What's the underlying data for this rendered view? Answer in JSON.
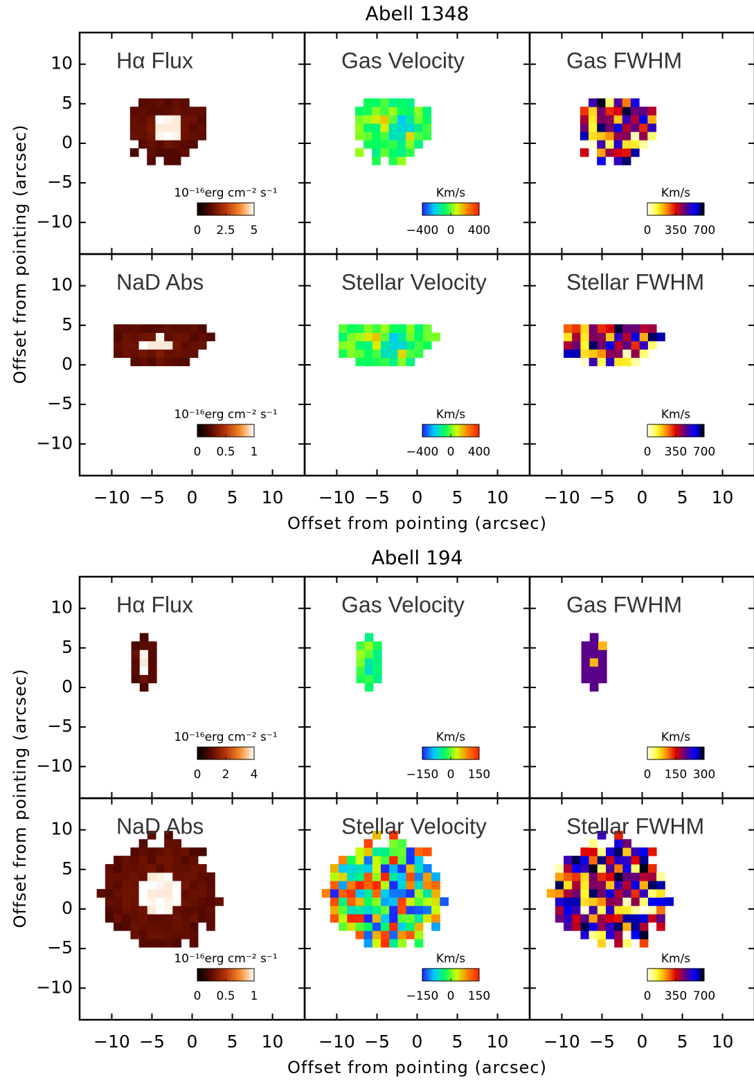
{
  "chart_data": [
    {
      "type": "image-grid",
      "title": "Abell 1348",
      "xlabel": "Offset from pointing (arcsec)",
      "ylabel": "Offset from pointing (arcsec)",
      "xlim": [
        -14,
        14
      ],
      "ylim": [
        -14,
        14
      ],
      "xticks": [
        {
          "value": -10,
          "label": "−10"
        },
        {
          "value": -5,
          "label": "−5"
        },
        0,
        5,
        10
      ],
      "yticks": [
        {
          "value": -10,
          "label": "−10"
        },
        {
          "value": -5,
          "label": "−5"
        },
        0,
        5,
        10
      ],
      "panels": [
        {
          "label": "Hα Flux",
          "colorbar": {
            "label": "10⁻¹⁶erg cm⁻² s⁻¹",
            "lim": [
              0,
              5
            ],
            "ticks": [
              0,
              2.5,
              5
            ],
            "colormap": [
              "#000000",
              "#5a0a00",
              "#b8340a",
              "#f58a2a",
              "#ffffff"
            ]
          }
        },
        {
          "label": "Gas Velocity",
          "colorbar": {
            "label": "Km/s",
            "lim": [
              -400,
              400
            ],
            "ticks": [
              {
                "value": -400,
                "label": "−400"
              },
              0,
              400
            ],
            "colormap": [
              "#2020ff",
              "#00c8ff",
              "#00ff60",
              "#d0ff00",
              "#ff8000",
              "#ff2000"
            ]
          }
        },
        {
          "label": "Gas FWHM",
          "colorbar": {
            "label": "Km/s",
            "lim": [
              0,
              700
            ],
            "ticks": [
              0,
              350,
              700
            ],
            "colormap": [
              "#ffffff",
              "#ffff30",
              "#ff9000",
              "#e00000",
              "#600080",
              "#0000ff",
              "#000000"
            ]
          }
        },
        {
          "label": "NaD Abs",
          "colorbar": {
            "label": "10⁻¹⁶erg cm⁻² s⁻¹",
            "lim": [
              0,
              1
            ],
            "ticks": [
              0,
              0.5,
              1
            ],
            "colormap": [
              "#000000",
              "#5a0a00",
              "#b8340a",
              "#f58a2a",
              "#ffffff"
            ]
          }
        },
        {
          "label": "Stellar Velocity",
          "colorbar": {
            "label": "Km/s",
            "lim": [
              -400,
              400
            ],
            "ticks": [
              {
                "value": -400,
                "label": "−400"
              },
              0,
              400
            ],
            "colormap": [
              "#2020ff",
              "#00c8ff",
              "#00ff60",
              "#d0ff00",
              "#ff8000",
              "#ff2000"
            ]
          }
        },
        {
          "label": "Stellar FWHM",
          "colorbar": {
            "label": "Km/s",
            "lim": [
              0,
              700
            ],
            "ticks": [
              0,
              350,
              700
            ],
            "colormap": [
              "#ffffff",
              "#ffff30",
              "#ff9000",
              "#e00000",
              "#600080",
              "#0000ff",
              "#000000"
            ]
          }
        }
      ]
    },
    {
      "type": "image-grid",
      "title": "Abell 194",
      "xlabel": "Offset from pointing (arcsec)",
      "ylabel": "Offset from pointing (arcsec)",
      "xlim": [
        -14,
        14
      ],
      "ylim": [
        -14,
        14
      ],
      "xticks": [
        {
          "value": -10,
          "label": "−10"
        },
        {
          "value": -5,
          "label": "−5"
        },
        0,
        5,
        10
      ],
      "yticks": [
        {
          "value": -10,
          "label": "−10"
        },
        {
          "value": -5,
          "label": "−5"
        },
        0,
        5,
        10
      ],
      "panels": [
        {
          "label": "Hα Flux",
          "colorbar": {
            "label": "10⁻¹⁶erg cm⁻² s⁻¹",
            "lim": [
              0,
              4
            ],
            "ticks": [
              0,
              2,
              4
            ],
            "colormap": [
              "#000000",
              "#5a0a00",
              "#b8340a",
              "#f58a2a",
              "#ffffff"
            ]
          }
        },
        {
          "label": "Gas Velocity",
          "colorbar": {
            "label": "Km/s",
            "lim": [
              -150,
              150
            ],
            "ticks": [
              {
                "value": -150,
                "label": "−150"
              },
              0,
              150
            ],
            "colormap": [
              "#2020ff",
              "#00c8ff",
              "#00ff60",
              "#d0ff00",
              "#ff8000",
              "#ff2000"
            ]
          }
        },
        {
          "label": "Gas FWHM",
          "colorbar": {
            "label": "Km/s",
            "lim": [
              0,
              300
            ],
            "ticks": [
              0,
              150,
              300
            ],
            "colormap": [
              "#ffffff",
              "#ffff30",
              "#ff9000",
              "#e00000",
              "#600080",
              "#0000ff",
              "#000000"
            ]
          }
        },
        {
          "label": "NaD Abs",
          "colorbar": {
            "label": "10⁻¹⁶erg cm⁻² s⁻¹",
            "lim": [
              0,
              1
            ],
            "ticks": [
              0,
              0.5,
              1
            ],
            "colormap": [
              "#000000",
              "#5a0a00",
              "#b8340a",
              "#f58a2a",
              "#ffffff"
            ]
          }
        },
        {
          "label": "Stellar Velocity",
          "colorbar": {
            "label": "Km/s",
            "lim": [
              -150,
              150
            ],
            "ticks": [
              {
                "value": -150,
                "label": "−150"
              },
              0,
              150
            ],
            "colormap": [
              "#2020ff",
              "#00c8ff",
              "#00ff60",
              "#d0ff00",
              "#ff8000",
              "#ff2000"
            ]
          }
        },
        {
          "label": "Stellar FWHM",
          "colorbar": {
            "label": "Km/s",
            "lim": [
              0,
              700
            ],
            "ticks": [
              0,
              350,
              700
            ],
            "colormap": [
              "#ffffff",
              "#ffff30",
              "#ff9000",
              "#e00000",
              "#600080",
              "#0000ff",
              "#000000"
            ]
          }
        }
      ]
    }
  ]
}
